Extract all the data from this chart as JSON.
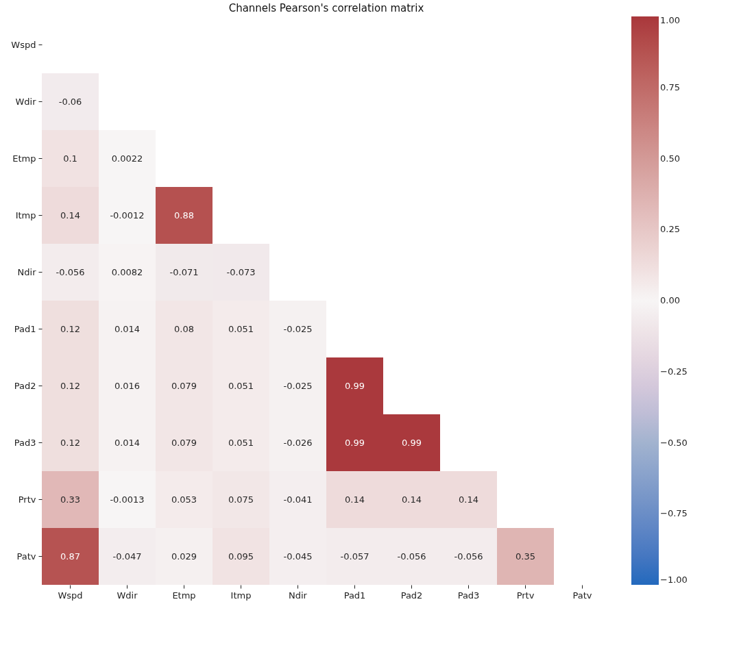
{
  "chart_data": {
    "type": "heatmap",
    "title": "Channels Pearson's correlation matrix",
    "categories": [
      "Wspd",
      "Wdir",
      "Etmp",
      "Itmp",
      "Ndir",
      "Pad1",
      "Pad2",
      "Pad3",
      "Prtv",
      "Patv"
    ],
    "y_categories": [
      "Wspd",
      "Wdir",
      "Etmp",
      "Itmp",
      "Ndir",
      "Pad1",
      "Pad2",
      "Pad3",
      "Prtv",
      "Patv"
    ],
    "cells": [
      [
        null,
        null,
        null,
        null,
        null,
        null,
        null,
        null,
        null,
        null
      ],
      [
        -0.06,
        null,
        null,
        null,
        null,
        null,
        null,
        null,
        null,
        null
      ],
      [
        0.1,
        0.0022,
        null,
        null,
        null,
        null,
        null,
        null,
        null,
        null
      ],
      [
        0.14,
        -0.0012,
        0.88,
        null,
        null,
        null,
        null,
        null,
        null,
        null
      ],
      [
        -0.056,
        0.0082,
        -0.071,
        -0.073,
        null,
        null,
        null,
        null,
        null,
        null
      ],
      [
        0.12,
        0.014,
        0.08,
        0.051,
        -0.025,
        null,
        null,
        null,
        null,
        null
      ],
      [
        0.12,
        0.016,
        0.079,
        0.051,
        -0.025,
        0.99,
        null,
        null,
        null,
        null
      ],
      [
        0.12,
        0.014,
        0.079,
        0.051,
        -0.026,
        0.99,
        0.99,
        null,
        null,
        null
      ],
      [
        0.33,
        -0.0013,
        0.053,
        0.075,
        -0.041,
        0.14,
        0.14,
        0.14,
        null,
        null
      ],
      [
        0.87,
        -0.047,
        0.029,
        0.095,
        -0.045,
        -0.057,
        -0.056,
        -0.056,
        0.35,
        null
      ]
    ],
    "data_labels": true,
    "clim": [
      -1,
      1
    ],
    "cticks": [
      {
        "value": -1,
        "label": "−1.00"
      },
      {
        "value": -0.75,
        "label": "−0.75"
      },
      {
        "value": -0.5,
        "label": "−0.50"
      },
      {
        "value": -0.25,
        "label": "−0.25"
      },
      {
        "value": 0,
        "label": "0.00"
      },
      {
        "value": 0.25,
        "label": "0.25"
      },
      {
        "value": 0.5,
        "label": "0.50"
      },
      {
        "value": 0.75,
        "label": "0.75"
      },
      {
        "value": 1,
        "label": "1.00"
      }
    ]
  }
}
